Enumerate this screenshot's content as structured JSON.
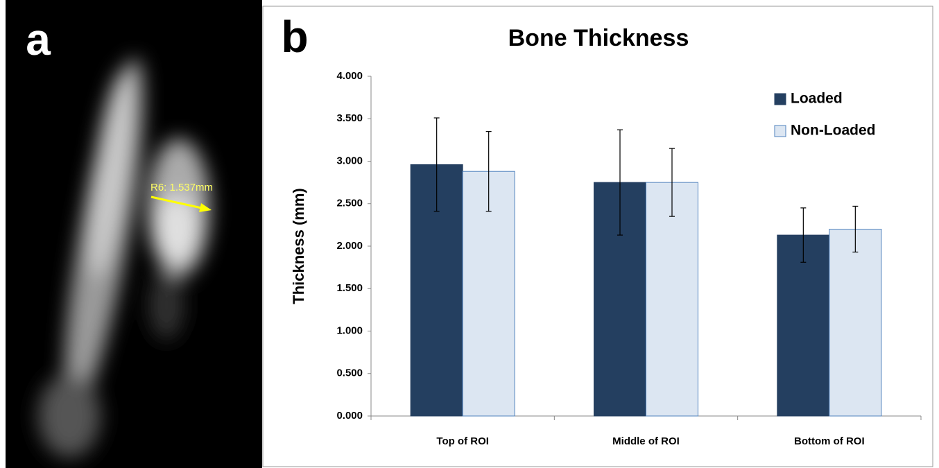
{
  "panel_labels": [
    "a",
    "b"
  ],
  "image_annotation": "R6: 1.537mm",
  "chart_data": {
    "type": "bar",
    "title": "Bone Thickness",
    "y_label": "Thickness (mm)",
    "categories": [
      "Top of ROI",
      "Middle of ROI",
      "Bottom of ROI"
    ],
    "series": [
      {
        "name": "Loaded",
        "color": "#243f60",
        "values": [
          2.96,
          2.75,
          2.13
        ],
        "errors": [
          0.55,
          0.62,
          0.32
        ]
      },
      {
        "name": "Non-Loaded",
        "color": "#dce6f2",
        "edge_color": "#4f81bd",
        "values": [
          2.88,
          2.75,
          2.2
        ],
        "errors": [
          0.47,
          0.4,
          0.27
        ]
      }
    ],
    "ylim": [
      0,
      4
    ],
    "yticks": [
      {
        "value": 0,
        "label": "0.000"
      },
      {
        "value": 0.5,
        "label": "0.500"
      },
      {
        "value": 1,
        "label": "1.000"
      },
      {
        "value": 1.5,
        "label": "1.500"
      },
      {
        "value": 2,
        "label": "2.000"
      },
      {
        "value": 2.5,
        "label": "2.500"
      },
      {
        "value": 3,
        "label": "3.000"
      },
      {
        "value": 3.5,
        "label": "3.500"
      },
      {
        "value": 4,
        "label": "4.000"
      }
    ],
    "legend": "upper right",
    "grid": false
  }
}
